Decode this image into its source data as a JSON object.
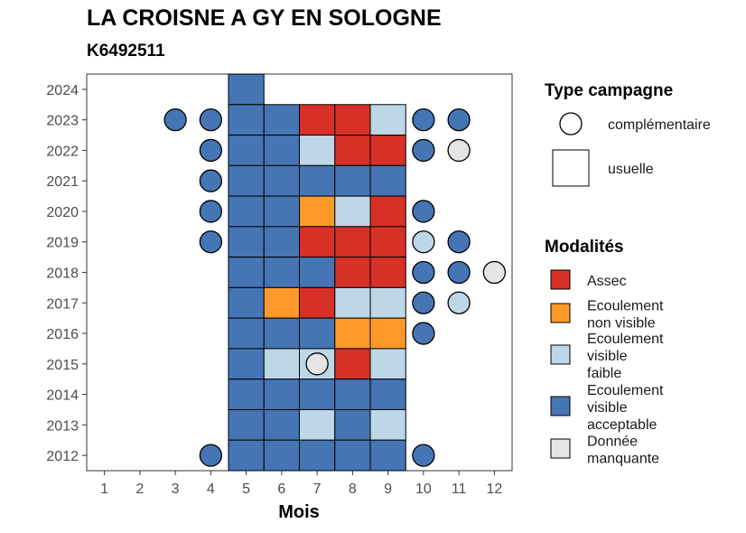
{
  "chart_data": {
    "type": "heatmap",
    "title": "LA CROISNE A GY EN SOLOGNE",
    "subtitle": "K6492511",
    "xlabel": "Mois",
    "ylabel": "",
    "x_ticks": [
      "1",
      "2",
      "3",
      "4",
      "5",
      "6",
      "7",
      "8",
      "9",
      "10",
      "11",
      "12"
    ],
    "y_ticks": [
      "2012",
      "2013",
      "2014",
      "2015",
      "2016",
      "2017",
      "2018",
      "2019",
      "2020",
      "2021",
      "2022",
      "2023",
      "2024"
    ],
    "xlim": [
      0.5,
      12.5
    ],
    "ylim": [
      2011.5,
      2024.5
    ],
    "grid": false,
    "legend_position": "right",
    "legend_campagne": {
      "title": "Type campagne",
      "items": [
        {
          "key": "complementaire",
          "label": "complémentaire",
          "shape": "circle"
        },
        {
          "key": "usuelle",
          "label": "usuelle",
          "shape": "square"
        }
      ]
    },
    "legend_modalites": {
      "title": "Modalités",
      "items": [
        {
          "key": "A",
          "lines": [
            "Assec"
          ],
          "color": "#D73027"
        },
        {
          "key": "NV",
          "lines": [
            "Ecoulement",
            "non visible"
          ],
          "color": "#FE9929"
        },
        {
          "key": "F",
          "lines": [
            "Ecoulement",
            "visible",
            "faible"
          ],
          "color": "#BDD7E7"
        },
        {
          "key": "V",
          "lines": [
            "Ecoulement",
            "visible",
            "acceptable"
          ],
          "color": "#4575B4"
        },
        {
          "key": "M",
          "lines": [
            "Donnée",
            "manquante"
          ],
          "color": "#E5E5E5"
        }
      ]
    },
    "observations": [
      {
        "year": 2024,
        "month": 5,
        "campagne": "usuelle",
        "modalite": "V"
      },
      {
        "year": 2023,
        "month": 3,
        "campagne": "complementaire",
        "modalite": "V"
      },
      {
        "year": 2023,
        "month": 4,
        "campagne": "complementaire",
        "modalite": "V"
      },
      {
        "year": 2023,
        "month": 5,
        "campagne": "usuelle",
        "modalite": "V"
      },
      {
        "year": 2023,
        "month": 6,
        "campagne": "usuelle",
        "modalite": "V"
      },
      {
        "year": 2023,
        "month": 7,
        "campagne": "usuelle",
        "modalite": "A"
      },
      {
        "year": 2023,
        "month": 8,
        "campagne": "usuelle",
        "modalite": "A"
      },
      {
        "year": 2023,
        "month": 9,
        "campagne": "usuelle",
        "modalite": "F"
      },
      {
        "year": 2023,
        "month": 10,
        "campagne": "complementaire",
        "modalite": "V"
      },
      {
        "year": 2023,
        "month": 11,
        "campagne": "complementaire",
        "modalite": "V"
      },
      {
        "year": 2022,
        "month": 4,
        "campagne": "complementaire",
        "modalite": "V"
      },
      {
        "year": 2022,
        "month": 5,
        "campagne": "usuelle",
        "modalite": "V"
      },
      {
        "year": 2022,
        "month": 6,
        "campagne": "usuelle",
        "modalite": "V"
      },
      {
        "year": 2022,
        "month": 7,
        "campagne": "usuelle",
        "modalite": "F"
      },
      {
        "year": 2022,
        "month": 8,
        "campagne": "usuelle",
        "modalite": "A"
      },
      {
        "year": 2022,
        "month": 9,
        "campagne": "usuelle",
        "modalite": "A"
      },
      {
        "year": 2022,
        "month": 10,
        "campagne": "complementaire",
        "modalite": "V"
      },
      {
        "year": 2022,
        "month": 11,
        "campagne": "complementaire",
        "modalite": "M"
      },
      {
        "year": 2021,
        "month": 4,
        "campagne": "complementaire",
        "modalite": "V"
      },
      {
        "year": 2021,
        "month": 5,
        "campagne": "usuelle",
        "modalite": "V"
      },
      {
        "year": 2021,
        "month": 6,
        "campagne": "usuelle",
        "modalite": "V"
      },
      {
        "year": 2021,
        "month": 7,
        "campagne": "usuelle",
        "modalite": "V"
      },
      {
        "year": 2021,
        "month": 8,
        "campagne": "usuelle",
        "modalite": "V"
      },
      {
        "year": 2021,
        "month": 9,
        "campagne": "usuelle",
        "modalite": "V"
      },
      {
        "year": 2020,
        "month": 4,
        "campagne": "complementaire",
        "modalite": "V"
      },
      {
        "year": 2020,
        "month": 5,
        "campagne": "usuelle",
        "modalite": "V"
      },
      {
        "year": 2020,
        "month": 6,
        "campagne": "usuelle",
        "modalite": "V"
      },
      {
        "year": 2020,
        "month": 7,
        "campagne": "usuelle",
        "modalite": "NV"
      },
      {
        "year": 2020,
        "month": 8,
        "campagne": "usuelle",
        "modalite": "F"
      },
      {
        "year": 2020,
        "month": 9,
        "campagne": "usuelle",
        "modalite": "A"
      },
      {
        "year": 2020,
        "month": 10,
        "campagne": "complementaire",
        "modalite": "V"
      },
      {
        "year": 2019,
        "month": 4,
        "campagne": "complementaire",
        "modalite": "V"
      },
      {
        "year": 2019,
        "month": 5,
        "campagne": "usuelle",
        "modalite": "V"
      },
      {
        "year": 2019,
        "month": 6,
        "campagne": "usuelle",
        "modalite": "V"
      },
      {
        "year": 2019,
        "month": 7,
        "campagne": "usuelle",
        "modalite": "A"
      },
      {
        "year": 2019,
        "month": 8,
        "campagne": "usuelle",
        "modalite": "A"
      },
      {
        "year": 2019,
        "month": 9,
        "campagne": "usuelle",
        "modalite": "A"
      },
      {
        "year": 2019,
        "month": 10,
        "campagne": "complementaire",
        "modalite": "F"
      },
      {
        "year": 2019,
        "month": 11,
        "campagne": "complementaire",
        "modalite": "V"
      },
      {
        "year": 2018,
        "month": 5,
        "campagne": "usuelle",
        "modalite": "V"
      },
      {
        "year": 2018,
        "month": 6,
        "campagne": "usuelle",
        "modalite": "V"
      },
      {
        "year": 2018,
        "month": 7,
        "campagne": "usuelle",
        "modalite": "V"
      },
      {
        "year": 2018,
        "month": 8,
        "campagne": "usuelle",
        "modalite": "A"
      },
      {
        "year": 2018,
        "month": 9,
        "campagne": "usuelle",
        "modalite": "A"
      },
      {
        "year": 2018,
        "month": 10,
        "campagne": "complementaire",
        "modalite": "V"
      },
      {
        "year": 2018,
        "month": 11,
        "campagne": "complementaire",
        "modalite": "V"
      },
      {
        "year": 2018,
        "month": 12,
        "campagne": "complementaire",
        "modalite": "M"
      },
      {
        "year": 2017,
        "month": 5,
        "campagne": "usuelle",
        "modalite": "V"
      },
      {
        "year": 2017,
        "month": 6,
        "campagne": "usuelle",
        "modalite": "NV"
      },
      {
        "year": 2017,
        "month": 7,
        "campagne": "usuelle",
        "modalite": "A"
      },
      {
        "year": 2017,
        "month": 8,
        "campagne": "usuelle",
        "modalite": "F"
      },
      {
        "year": 2017,
        "month": 9,
        "campagne": "usuelle",
        "modalite": "F"
      },
      {
        "year": 2017,
        "month": 10,
        "campagne": "complementaire",
        "modalite": "V"
      },
      {
        "year": 2017,
        "month": 11,
        "campagne": "complementaire",
        "modalite": "F"
      },
      {
        "year": 2016,
        "month": 5,
        "campagne": "usuelle",
        "modalite": "V"
      },
      {
        "year": 2016,
        "month": 6,
        "campagne": "usuelle",
        "modalite": "V"
      },
      {
        "year": 2016,
        "month": 7,
        "campagne": "usuelle",
        "modalite": "V"
      },
      {
        "year": 2016,
        "month": 8,
        "campagne": "usuelle",
        "modalite": "NV"
      },
      {
        "year": 2016,
        "month": 9,
        "campagne": "usuelle",
        "modalite": "NV"
      },
      {
        "year": 2016,
        "month": 10,
        "campagne": "complementaire",
        "modalite": "V"
      },
      {
        "year": 2015,
        "month": 5,
        "campagne": "usuelle",
        "modalite": "V"
      },
      {
        "year": 2015,
        "month": 6,
        "campagne": "usuelle",
        "modalite": "F"
      },
      {
        "year": 2015,
        "month": 7,
        "campagne": "usuelle",
        "modalite": "F"
      },
      {
        "year": 2015,
        "month": 7,
        "campagne": "complementaire",
        "modalite": "M"
      },
      {
        "year": 2015,
        "month": 8,
        "campagne": "usuelle",
        "modalite": "A"
      },
      {
        "year": 2015,
        "month": 9,
        "campagne": "usuelle",
        "modalite": "F"
      },
      {
        "year": 2014,
        "month": 5,
        "campagne": "usuelle",
        "modalite": "V"
      },
      {
        "year": 2014,
        "month": 6,
        "campagne": "usuelle",
        "modalite": "V"
      },
      {
        "year": 2014,
        "month": 7,
        "campagne": "usuelle",
        "modalite": "V"
      },
      {
        "year": 2014,
        "month": 8,
        "campagne": "usuelle",
        "modalite": "V"
      },
      {
        "year": 2014,
        "month": 9,
        "campagne": "usuelle",
        "modalite": "V"
      },
      {
        "year": 2013,
        "month": 5,
        "campagne": "usuelle",
        "modalite": "V"
      },
      {
        "year": 2013,
        "month": 6,
        "campagne": "usuelle",
        "modalite": "V"
      },
      {
        "year": 2013,
        "month": 7,
        "campagne": "usuelle",
        "modalite": "F"
      },
      {
        "year": 2013,
        "month": 8,
        "campagne": "usuelle",
        "modalite": "V"
      },
      {
        "year": 2013,
        "month": 9,
        "campagne": "usuelle",
        "modalite": "F"
      },
      {
        "year": 2012,
        "month": 4,
        "campagne": "complementaire",
        "modalite": "V"
      },
      {
        "year": 2012,
        "month": 5,
        "campagne": "usuelle",
        "modalite": "V"
      },
      {
        "year": 2012,
        "month": 6,
        "campagne": "usuelle",
        "modalite": "V"
      },
      {
        "year": 2012,
        "month": 7,
        "campagne": "usuelle",
        "modalite": "V"
      },
      {
        "year": 2012,
        "month": 8,
        "campagne": "usuelle",
        "modalite": "V"
      },
      {
        "year": 2012,
        "month": 9,
        "campagne": "usuelle",
        "modalite": "V"
      },
      {
        "year": 2012,
        "month": 10,
        "campagne": "complementaire",
        "modalite": "V"
      }
    ]
  }
}
